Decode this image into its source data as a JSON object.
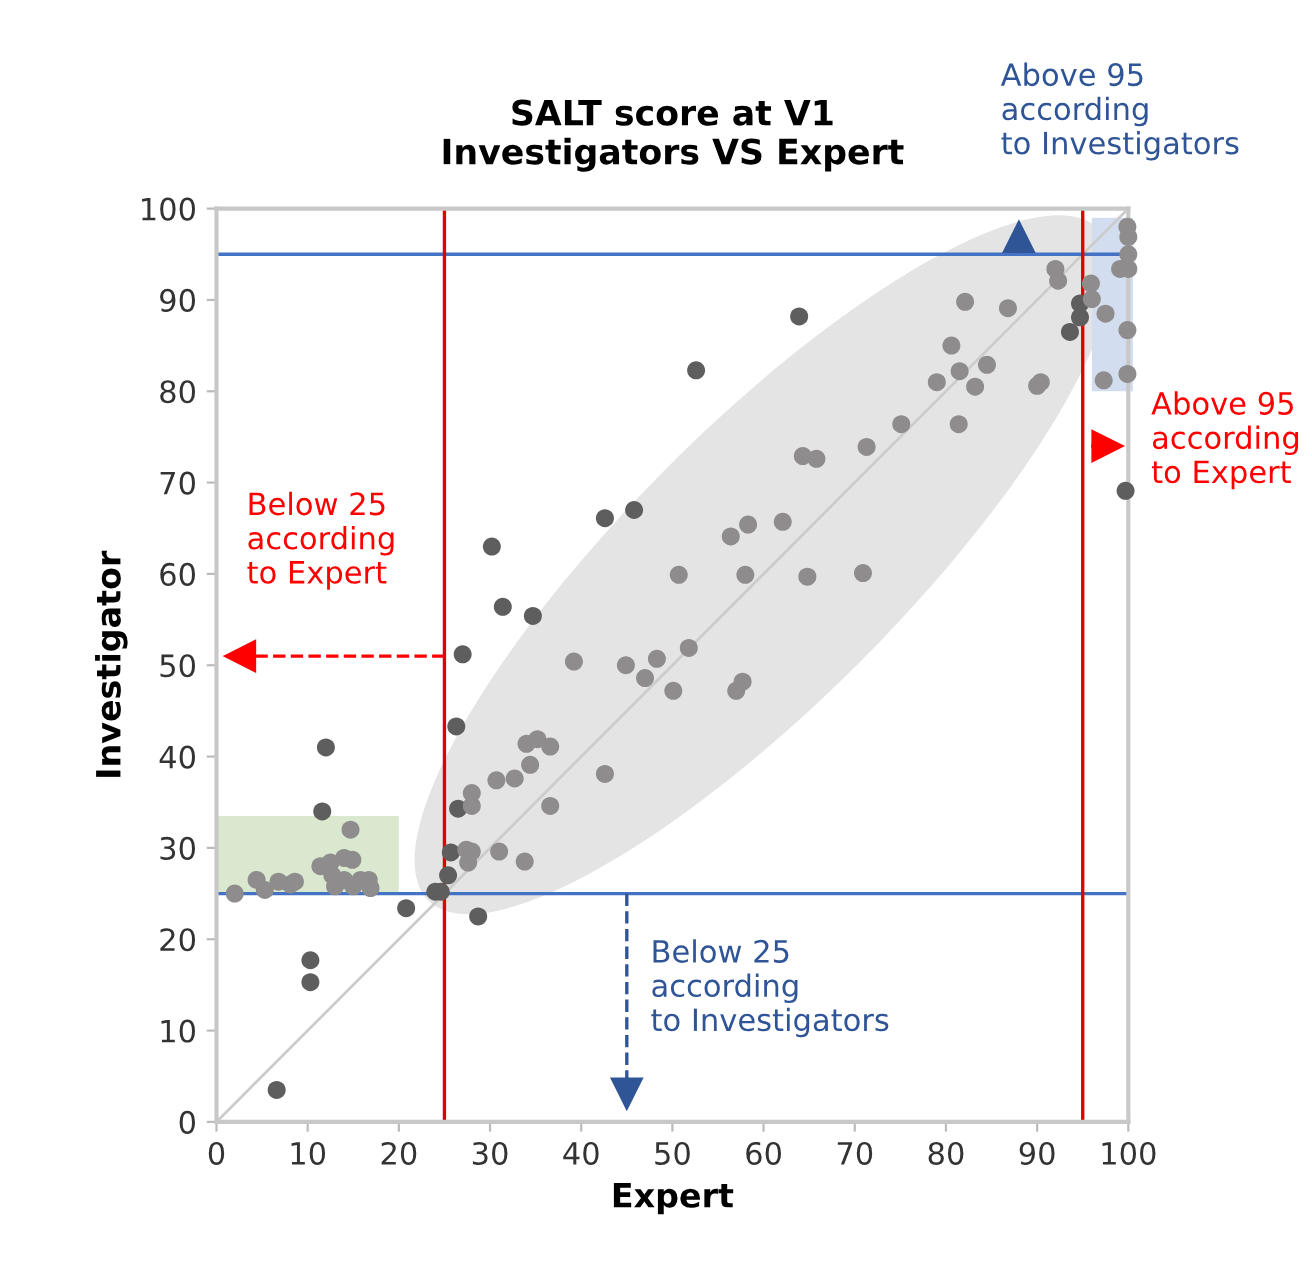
{
  "chart_data": {
    "type": "scatter",
    "title": "SALT score at V1\nInvestigators VS Expert",
    "xlabel": "Expert",
    "ylabel": "Investigator",
    "xlim": [
      0,
      100
    ],
    "ylim": [
      0,
      100
    ],
    "xticks": [
      0,
      10,
      20,
      30,
      40,
      50,
      60,
      70,
      80,
      90,
      100
    ],
    "yticks": [
      0,
      10,
      20,
      30,
      40,
      50,
      60,
      70,
      80,
      90,
      100
    ],
    "grid": false,
    "marker": "circle",
    "series": [
      {
        "color": "#5e5e5e",
        "x": [
          6.6,
          10.3,
          10.3,
          12,
          11.6,
          20.8,
          24,
          24.6,
          25.4,
          25.7,
          26.5,
          26.3,
          27,
          28.7,
          30.2,
          31.4,
          34.7,
          42.6,
          45.8,
          52.6,
          63.9,
          93.6,
          94.7,
          94.7,
          99.7
        ],
        "values": [
          3.5,
          17.7,
          15.3,
          41,
          34,
          23.4,
          25.2,
          25.2,
          27,
          29.5,
          34.3,
          43.3,
          51.2,
          22.5,
          63,
          56.4,
          55.4,
          66.1,
          67,
          82.3,
          88.2,
          86.5,
          88.1,
          89.6,
          69.1
        ]
      },
      {
        "color": "#8e8c8c",
        "x": [
          2,
          4.4,
          5.3,
          6.8,
          8.1,
          8.6,
          11.4,
          12.5,
          12.7,
          14,
          14.7,
          14.9,
          13,
          14,
          15.8,
          16.7,
          16.9,
          15,
          27.4,
          27.6,
          28,
          28,
          28,
          31,
          33.8,
          30.7,
          32.7,
          34.4,
          34,
          35.2,
          36.6,
          36.6,
          42.6,
          39.2,
          44.9,
          47,
          48.3,
          50.1,
          51.8,
          57,
          57.7,
          50.7,
          58,
          56.4,
          58.3,
          62.1,
          64.8,
          70.9,
          64.3,
          65.8,
          71.3,
          75.1,
          81.4,
          79,
          83.2,
          81.5,
          84.5,
          80.6,
          82.1,
          86.8,
          90,
          90.4,
          92,
          92.3,
          95.9,
          96,
          97.5,
          99.9,
          100,
          100,
          99.1,
          100,
          99.9,
          97.3,
          99.9
        ],
        "values": [
          25,
          26.5,
          25.4,
          26.3,
          26,
          26.3,
          28,
          28.4,
          27,
          28.9,
          32,
          28.7,
          25.8,
          26.5,
          26.5,
          26.5,
          25.6,
          25.8,
          29.8,
          28.4,
          34.6,
          36,
          29.6,
          29.6,
          28.5,
          37.4,
          37.6,
          39.1,
          41.4,
          41.9,
          41.1,
          34.6,
          38.1,
          50.4,
          50,
          48.6,
          50.7,
          47.2,
          51.9,
          47.2,
          48.2,
          59.9,
          59.9,
          64.1,
          65.4,
          65.7,
          59.7,
          60.1,
          72.9,
          72.6,
          73.9,
          76.4,
          76.4,
          81,
          80.5,
          82.2,
          82.9,
          85,
          89.8,
          89.1,
          80.6,
          81,
          93.4,
          92.1,
          91.8,
          90.1,
          88.5,
          98,
          96.9,
          95,
          93.4,
          93.4,
          86.7,
          81.2,
          81.9
        ]
      },
      {
        "type": "line",
        "marker": "none",
        "color": "#cccccc",
        "x": [
          0,
          100
        ],
        "values": [
          0,
          100
        ]
      }
    ],
    "ref_lines": [
      {
        "axis": "y",
        "value": 95,
        "color": "#4472c4"
      },
      {
        "axis": "y",
        "value": 25,
        "color": "#4472c4"
      },
      {
        "axis": "x",
        "value": 25,
        "color": "#e00000"
      },
      {
        "axis": "x",
        "value": 95,
        "color": "#e00000"
      }
    ],
    "annotations": [
      "Above 95\naccording\nto Investigators",
      "Above 95\naccording\nto Expert",
      "Below 25\naccording\nto Expert",
      "Below 25\naccording\nto Investigators"
    ]
  }
}
